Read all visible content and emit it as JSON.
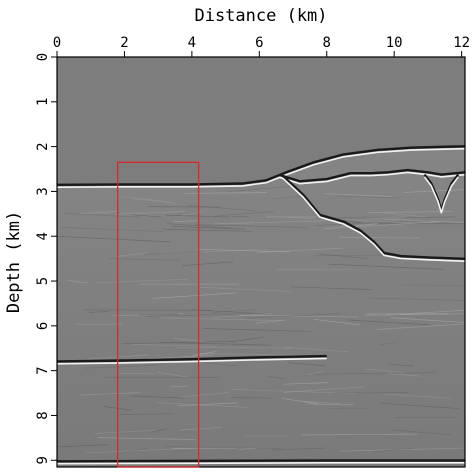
{
  "chart_data": {
    "type": "heatmap",
    "subtype": "seismic depth section (grayscale)",
    "xlabel": "Distance (km)",
    "ylabel": "Depth (km)",
    "xlim": [
      0,
      12.1
    ],
    "ylim": [
      0,
      9.15
    ],
    "y_inverted": true,
    "x_axis_position": "top",
    "x_ticks": [
      0,
      2,
      4,
      6,
      8,
      10,
      12
    ],
    "y_ticks": [
      0,
      1,
      2,
      3,
      4,
      5,
      6,
      7,
      8,
      9
    ],
    "colormap": "gray",
    "colors": {
      "background": "#7d7d7d",
      "water": "#7d7d7d",
      "sediment": "#808080",
      "highlight_box": "#d9282b"
    },
    "reflectors": [
      {
        "name": "seafloor",
        "points": [
          [
            0,
            2.88
          ],
          [
            2,
            2.87
          ],
          [
            4,
            2.87
          ],
          [
            5.5,
            2.85
          ],
          [
            6.2,
            2.78
          ],
          [
            6.8,
            2.6
          ],
          [
            7.6,
            2.38
          ],
          [
            8.5,
            2.2
          ],
          [
            9.5,
            2.1
          ],
          [
            10.5,
            2.05
          ],
          [
            11.5,
            2.03
          ],
          [
            12.1,
            2.02
          ]
        ]
      },
      {
        "name": "salt top",
        "points": [
          [
            6.6,
            2.66
          ],
          [
            7.2,
            2.8
          ],
          [
            8,
            2.75
          ],
          [
            8.7,
            2.62
          ],
          [
            9.3,
            2.62
          ],
          [
            9.8,
            2.6
          ],
          [
            10.4,
            2.55
          ],
          [
            11,
            2.6
          ],
          [
            11.4,
            2.65
          ],
          [
            12.1,
            2.6
          ]
        ]
      },
      {
        "name": "salt body flank",
        "points": [
          [
            6.7,
            2.68
          ],
          [
            7.3,
            3.1
          ],
          [
            7.8,
            3.55
          ],
          [
            8.5,
            3.7
          ],
          [
            9.0,
            3.9
          ],
          [
            9.4,
            4.15
          ],
          [
            9.7,
            4.4
          ],
          [
            10.2,
            4.47
          ],
          [
            11,
            4.5
          ],
          [
            12.1,
            4.53
          ]
        ]
      },
      {
        "name": "salt keel",
        "points": [
          [
            10.9,
            2.65
          ],
          [
            11.1,
            2.85
          ],
          [
            11.3,
            3.2
          ],
          [
            11.4,
            3.45
          ],
          [
            11.5,
            3.2
          ],
          [
            11.7,
            2.85
          ],
          [
            11.9,
            2.65
          ]
        ]
      },
      {
        "name": "deep reflector",
        "points": [
          [
            0,
            6.82
          ],
          [
            2,
            6.8
          ],
          [
            4,
            6.77
          ],
          [
            6,
            6.73
          ],
          [
            8,
            6.7
          ]
        ]
      },
      {
        "name": "basement",
        "points": [
          [
            0,
            9.05
          ],
          [
            4,
            9.04
          ],
          [
            8,
            9.03
          ],
          [
            12.1,
            9.03
          ]
        ]
      }
    ],
    "highlight_box": {
      "x": [
        1.8,
        4.2
      ],
      "y": [
        2.35,
        9.15
      ],
      "color": "#d9282b"
    }
  }
}
